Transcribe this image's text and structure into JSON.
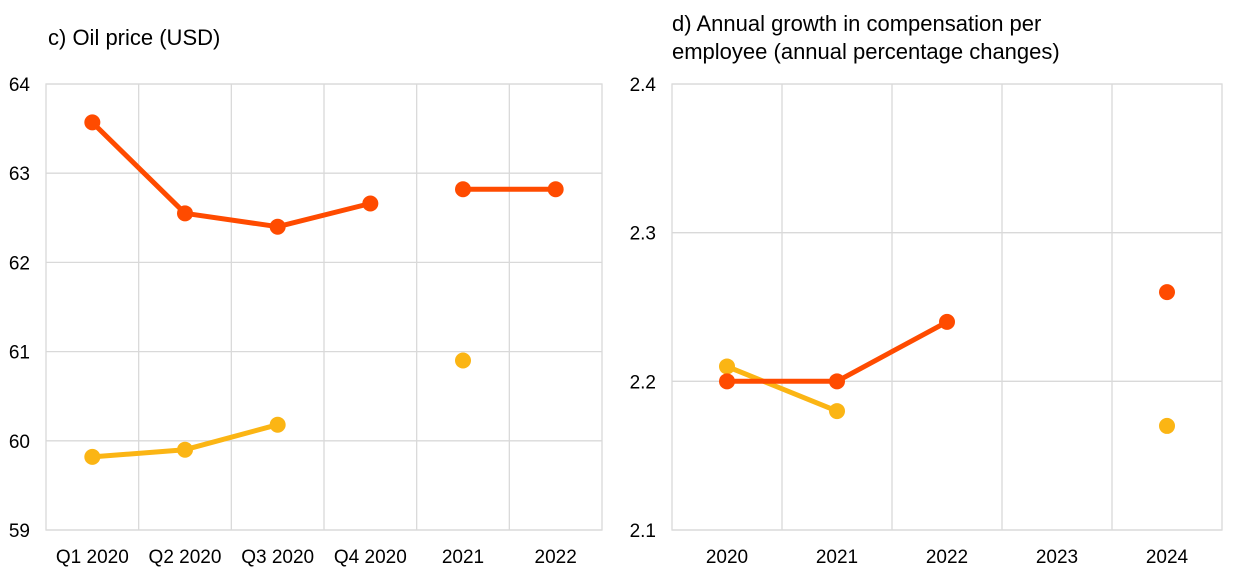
{
  "colors": {
    "series_a": "#fbb514",
    "series_b": "#ff4b00",
    "grid": "#d9d9d9"
  },
  "chart_data": [
    {
      "id": "c",
      "type": "line",
      "title": "c) Oil price (USD)",
      "xlabel": "",
      "ylabel": "",
      "categories": [
        "Q1 2020",
        "Q2 2020",
        "Q3 2020",
        "Q4 2020",
        "2021",
        "2022"
      ],
      "yticks": [
        "59",
        "60",
        "61",
        "62",
        "63",
        "64"
      ],
      "ylim": [
        59,
        64
      ],
      "grid": true,
      "legend": "none",
      "series": [
        {
          "color": "#fbb514",
          "values": [
            59.82,
            59.9,
            60.18,
            null,
            60.9,
            null
          ],
          "segments": [
            [
              0,
              2
            ]
          ]
        },
        {
          "color": "#ff4b00",
          "values": [
            63.57,
            62.55,
            62.4,
            62.66,
            62.82,
            62.82
          ],
          "segments": [
            [
              0,
              3
            ],
            [
              4,
              5
            ]
          ]
        }
      ]
    },
    {
      "id": "d",
      "type": "line",
      "title": "d) Annual growth in compensation per employee (annual percentage changes)",
      "title_lines": [
        "d) Annual growth in compensation per",
        "employee (annual percentage changes)"
      ],
      "xlabel": "",
      "ylabel": "",
      "categories": [
        "2020",
        "2021",
        "2022",
        "2023",
        "2024"
      ],
      "yticks": [
        "2.1",
        "2.2",
        "2.3",
        "2.4"
      ],
      "ylim": [
        2.1,
        2.4
      ],
      "grid": true,
      "legend": "none",
      "series": [
        {
          "color": "#fbb514",
          "values": [
            2.21,
            2.18,
            null,
            null,
            2.17
          ],
          "segments": [
            [
              0,
              1
            ]
          ]
        },
        {
          "color": "#ff4b00",
          "values": [
            2.2,
            2.2,
            2.24,
            null,
            2.26
          ],
          "segments": [
            [
              0,
              2
            ]
          ]
        }
      ]
    }
  ]
}
